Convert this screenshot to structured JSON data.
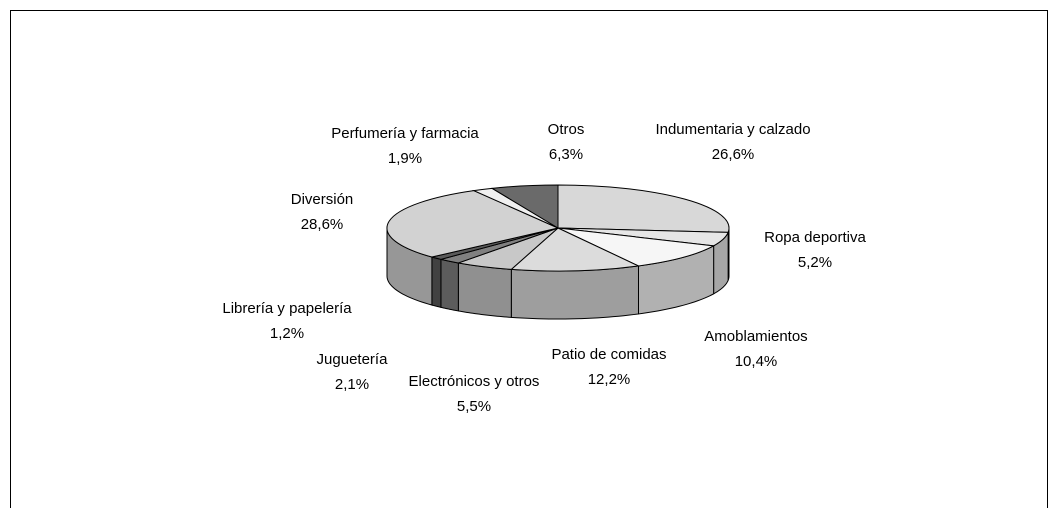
{
  "chart_data": {
    "type": "pie3d",
    "categories": [
      "Indumentaria y calzado",
      "Ropa deportiva",
      "Amoblamientos",
      "Patio de comidas",
      "Electrónicos y otros",
      "Juguetería",
      "Librería y papelería",
      "Diversión",
      "Perfumería y farmacia",
      "Otros"
    ],
    "values": [
      26.6,
      5.2,
      10.4,
      12.2,
      5.5,
      2.1,
      1.2,
      28.6,
      1.9,
      6.3
    ],
    "value_labels": [
      "26,6%",
      "5,2%",
      "10,4%",
      "12,2%",
      "5,5%",
      "2,1%",
      "1,2%",
      "28,6%",
      "1,9%",
      "6,3%"
    ],
    "colors": [
      "#d8d8d8",
      "#e6e6e6",
      "#f6f6f6",
      "#dcdcdc",
      "#c8c8c8",
      "#808080",
      "#5a5a5a",
      "#d2d2d2",
      "#f0f0f0",
      "#6a6a6a"
    ]
  }
}
